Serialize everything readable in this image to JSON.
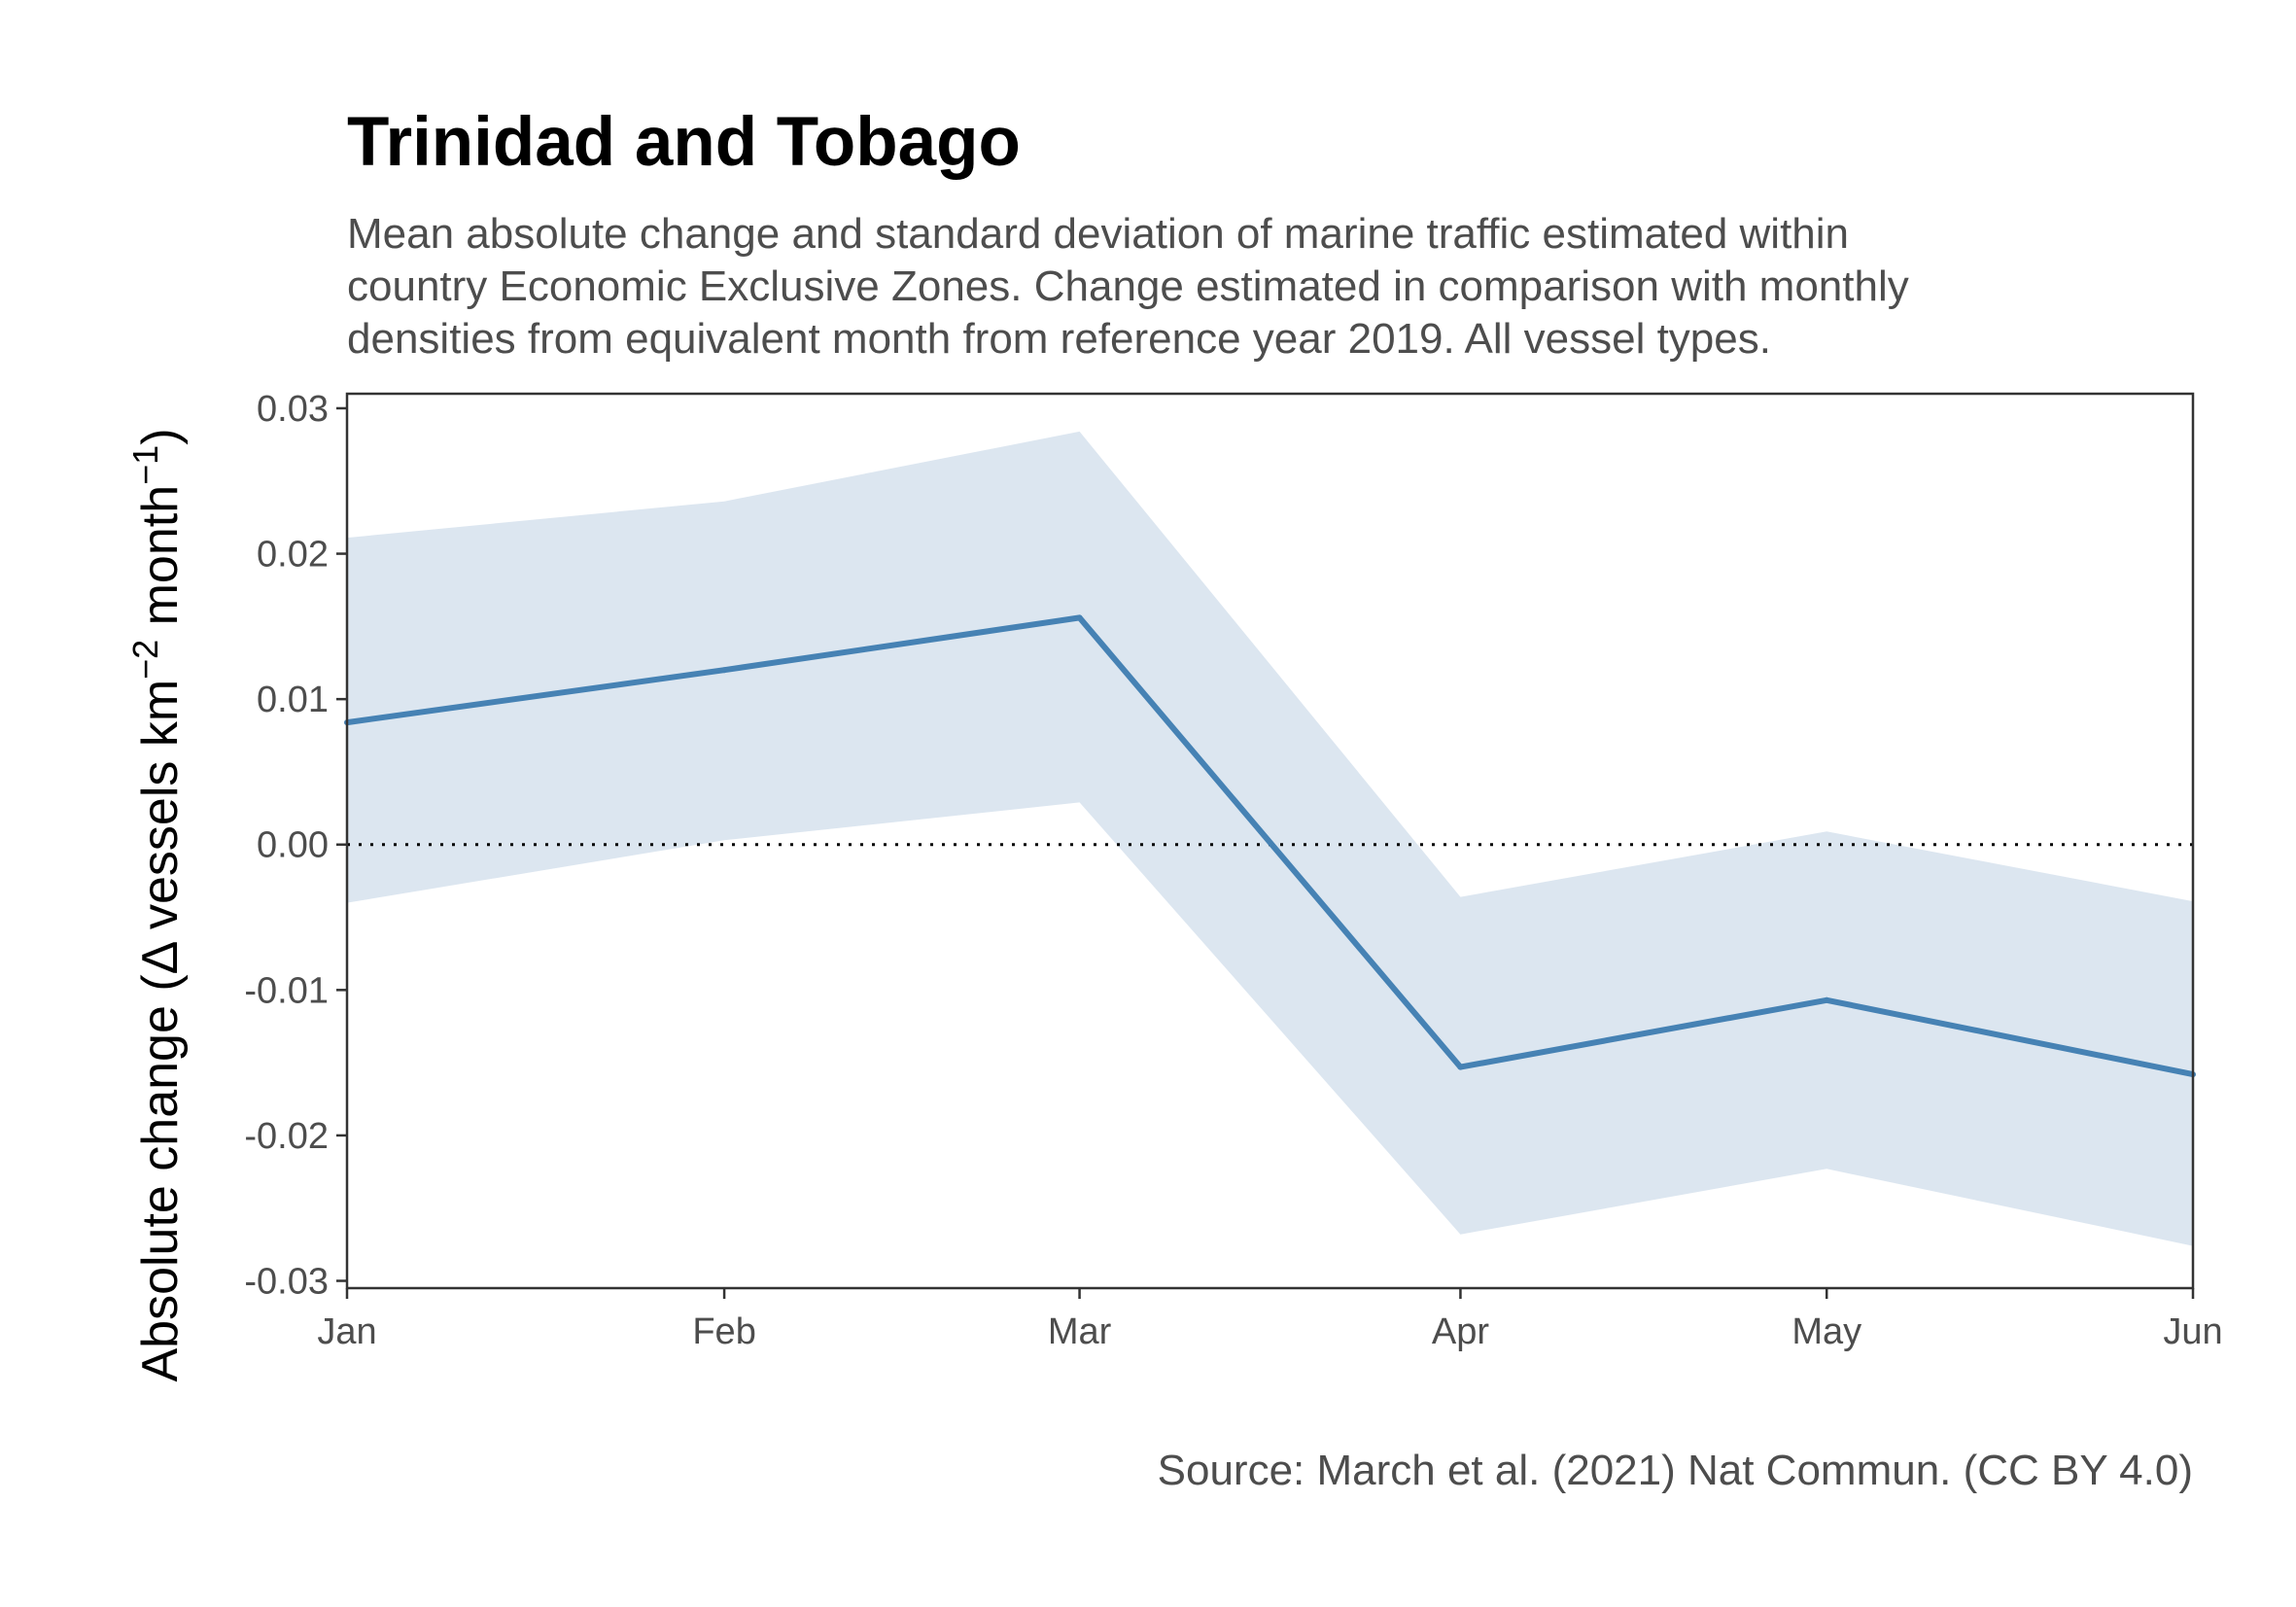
{
  "chart_data": {
    "type": "line",
    "title": "Trinidad and Tobago",
    "subtitle_lines": [
      "Mean absolute change and standard deviation of marine traffic estimated within",
      "country Economic Exclusive Zones. Change estimated in comparison with monthly",
      "densities from equivalent month from reference year 2019. All vessel types."
    ],
    "ylabel": {
      "prefix": "Absolute change (",
      "delta": "Δ",
      "main": " vessels km",
      "sup1": "−2",
      "mid": " month",
      "sup2": "−1",
      "suffix": ")"
    },
    "xlabel": "",
    "caption": "Source: March et al. (2021) Nat Commun. (CC BY 4.0)",
    "categories": [
      "Jan",
      "Feb",
      "Mar",
      "Apr",
      "May",
      "Jun"
    ],
    "x_positions": [
      1,
      2.03,
      3,
      4.04,
      5.04,
      6.04
    ],
    "series": [
      {
        "values": [
          0.0084,
          0.012,
          0.0156,
          -0.0153,
          -0.0107,
          -0.0158
        ],
        "lower": [
          -0.004,
          0.0003,
          0.0029,
          -0.0268,
          -0.0223,
          -0.0276
        ],
        "upper": [
          0.0211,
          0.0236,
          0.0284,
          -0.0036,
          0.0009,
          -0.0039
        ]
      }
    ],
    "ylim": [
      -0.0305,
      0.031
    ],
    "xlim": [
      1,
      6.04
    ],
    "yticks": [
      0.03,
      0.02,
      0.01,
      0.0,
      -0.01,
      -0.02,
      -0.03
    ],
    "ytick_labels": [
      "0.03",
      "0.02",
      "0.01",
      "0.00",
      "-0.01",
      "-0.02",
      "-0.03"
    ],
    "reference_line": 0,
    "grid": false,
    "colors": {
      "line": "#4682b4",
      "ribbon": "#dce6f0",
      "axis": "#333333",
      "reference": "#000000"
    }
  }
}
